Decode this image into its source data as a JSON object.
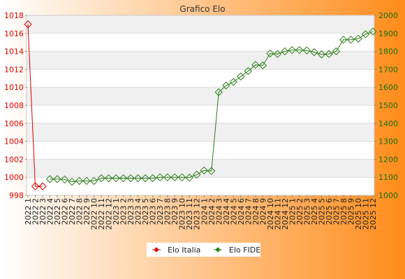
{
  "chart_data": {
    "type": "line",
    "title": "Grafico Elo",
    "x": [
      "2022 1",
      "2022 2",
      "2022 3",
      "2022 4",
      "2022 5",
      "2022 6",
      "2022 7",
      "2022 8",
      "2022 9",
      "2022 10",
      "2022 11",
      "2022 12",
      "2023 1",
      "2023 2",
      "2023 3",
      "2023 4",
      "2023 5",
      "2023 6",
      "2023 7",
      "2023 8",
      "2023 9",
      "2023 10",
      "2023 11",
      "2023 12",
      "2024 1",
      "2024 2",
      "2024 3",
      "2024 4",
      "2024 5",
      "2024 6",
      "2024 7",
      "2024 8",
      "2024 9",
      "2024 10",
      "2024 11",
      "2024 12",
      "2025 1",
      "2025 2",
      "2025 3",
      "2025 4",
      "2025 5",
      "2025 6",
      "2025 7",
      "2025 8",
      "2025 9",
      "2025 10",
      "2025 11",
      "2025 12"
    ],
    "y_left": {
      "range": [
        998,
        1018
      ],
      "ticks": [
        998,
        1000,
        1002,
        1004,
        1006,
        1008,
        1010,
        1012,
        1014,
        1016,
        1018
      ]
    },
    "y_right": {
      "range": [
        1000,
        2000
      ],
      "ticks": [
        1000,
        1100,
        1200,
        1300,
        1400,
        1500,
        1600,
        1700,
        1800,
        1900,
        2000
      ]
    },
    "series": [
      {
        "name": "Elo Italia",
        "axis": "left",
        "color": "#d40000",
        "marker": "diamond",
        "values": [
          1017,
          999,
          999,
          null,
          null,
          null,
          null,
          null,
          null,
          null,
          null,
          null,
          null,
          null,
          null,
          null,
          null,
          null,
          null,
          null,
          null,
          null,
          null,
          null,
          null,
          null,
          null,
          null,
          null,
          null,
          null,
          null,
          null,
          null,
          null,
          null,
          null,
          null,
          null,
          null,
          null,
          null,
          null,
          null,
          null,
          null,
          null,
          null
        ]
      },
      {
        "name": "Elo FIDE",
        "axis": "right",
        "color": "#2e7d18",
        "marker": "diamond",
        "values": [
          null,
          null,
          null,
          1090,
          1090,
          1088,
          1075,
          1080,
          1080,
          1080,
          1095,
          1095,
          1095,
          1095,
          1095,
          1095,
          1095,
          1095,
          1100,
          1100,
          1100,
          1100,
          1098,
          1115,
          1138,
          1135,
          1573,
          1610,
          1630,
          1660,
          1690,
          1725,
          1722,
          1788,
          1785,
          1800,
          1807,
          1807,
          1805,
          1795,
          1783,
          1785,
          1800,
          1865,
          1865,
          1870,
          1895,
          1910
        ]
      }
    ],
    "legend_position": "bottom-center",
    "grid": true,
    "colors": {
      "background_from": "#ffffff",
      "background_to": "#ff8c1a",
      "band": "#f0f0f0",
      "plot_bg": "#ffffff"
    }
  }
}
